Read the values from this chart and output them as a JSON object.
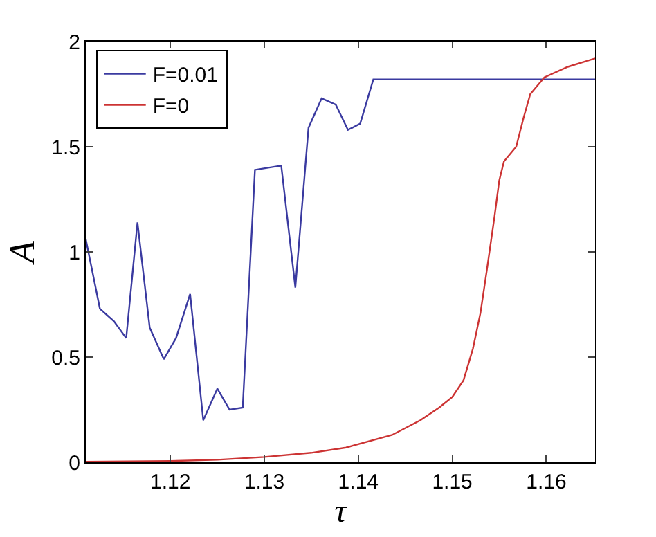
{
  "chart_data": {
    "type": "line",
    "xlabel": "τ",
    "ylabel": "A",
    "xlim": [
      1.111,
      1.1652
    ],
    "ylim": [
      0,
      2
    ],
    "xticks": [
      1.12,
      1.13,
      1.14,
      1.15,
      1.16
    ],
    "yticks": [
      0,
      0.5,
      1,
      1.5,
      2
    ],
    "legend": "top left",
    "marker": "none",
    "line_style": "solid",
    "series": [
      {
        "name": "F=0.01",
        "color": "#3a3aa0",
        "x": [
          1.111,
          1.1125,
          1.114,
          1.1153,
          1.1165,
          1.1178,
          1.1193,
          1.1206,
          1.1221,
          1.1235,
          1.125,
          1.1263,
          1.1277,
          1.129,
          1.1318,
          1.1333,
          1.1347,
          1.1361,
          1.1376,
          1.1389,
          1.1402,
          1.1416,
          1.1652
        ],
        "values": [
          1.06,
          0.73,
          0.67,
          0.59,
          1.14,
          0.64,
          0.49,
          0.59,
          0.8,
          0.2,
          0.35,
          0.25,
          0.26,
          1.39,
          1.41,
          0.83,
          1.59,
          1.73,
          1.7,
          1.58,
          1.61,
          1.82,
          1.82
        ]
      },
      {
        "name": "F=0",
        "color": "#cc3333",
        "x": [
          1.111,
          1.12,
          1.125,
          1.13,
          1.135,
          1.1387,
          1.1436,
          1.1466,
          1.1486,
          1.15,
          1.1512,
          1.1522,
          1.153,
          1.1537,
          1.1545,
          1.155,
          1.1555,
          1.1568,
          1.1576,
          1.1583,
          1.1598,
          1.1623,
          1.1652
        ],
        "values": [
          0.003,
          0.006,
          0.012,
          0.025,
          0.045,
          0.07,
          0.13,
          0.2,
          0.26,
          0.31,
          0.39,
          0.54,
          0.71,
          0.92,
          1.17,
          1.34,
          1.43,
          1.5,
          1.64,
          1.75,
          1.83,
          1.88,
          1.92
        ]
      }
    ]
  }
}
